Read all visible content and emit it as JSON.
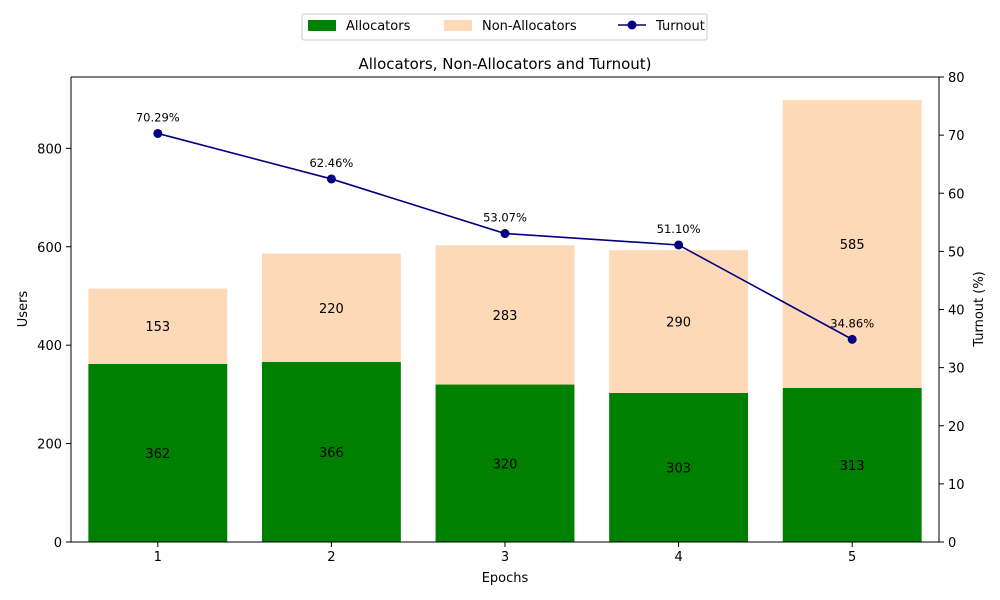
{
  "chart_data": {
    "type": "bar",
    "title": "Allocators, Non-Allocators and Turnout)",
    "xlabel": "Epochs",
    "ylabel": "Users",
    "y2label": "Turnout (%)",
    "categories": [
      "1",
      "2",
      "3",
      "4",
      "5"
    ],
    "ylim": [
      0,
      945
    ],
    "y_ticks": [
      0,
      200,
      400,
      600,
      800
    ],
    "y2lim": [
      0,
      80
    ],
    "y2_ticks": [
      0,
      10,
      20,
      30,
      40,
      50,
      60,
      70,
      80
    ],
    "stacked": true,
    "series": [
      {
        "name": "Allocators",
        "type": "bar",
        "color": "#008000",
        "label_color": "#ffffff",
        "values": [
          362,
          366,
          320,
          303,
          313
        ]
      },
      {
        "name": "Non-Allocators",
        "type": "bar",
        "color": "#fdd9b8",
        "label_color": "#000000",
        "values": [
          153,
          220,
          283,
          290,
          585
        ]
      },
      {
        "name": "Turnout",
        "type": "line",
        "axis": "right",
        "color": "#000080",
        "marker": "circle",
        "values": [
          70.29,
          62.46,
          53.07,
          51.1,
          34.86
        ],
        "labels": [
          "70.29%",
          "62.46%",
          "53.07%",
          "51.10%",
          "34.86%"
        ]
      }
    ],
    "legend_position": "top-center",
    "grid": false
  }
}
